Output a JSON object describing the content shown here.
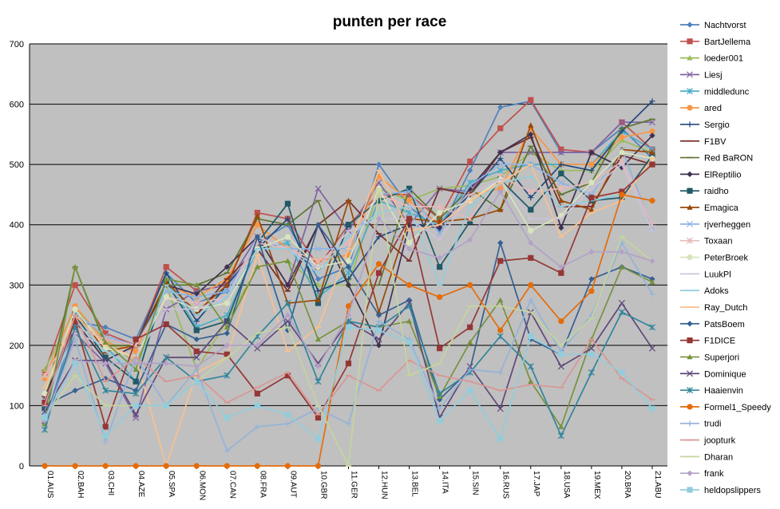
{
  "chart_data": {
    "type": "line",
    "title": "punten per race",
    "xlabel": "",
    "ylabel": "",
    "ylim": [
      0,
      700
    ],
    "yticks": [
      0,
      100,
      200,
      300,
      400,
      500,
      600,
      700
    ],
    "grid": true,
    "legend_position": "right",
    "plot_background": "#c0c0c0",
    "categories": [
      "01.AUS",
      "02.BAH",
      "03.CHI",
      "04.AZE",
      "05.SPA",
      "06.MON",
      "07.CAN",
      "08.FRA",
      "09.AUT",
      "10.GBR",
      "11.GER",
      "12.HUN",
      "13.BEL",
      "14.ITA",
      "15.SIN",
      "16.RUS",
      "17.JAP",
      "18.USA",
      "19.MEX",
      "20.BRA",
      "21.ABU"
    ],
    "series": [
      {
        "name": "Nachtvorst",
        "color": "#4f81bd",
        "marker": "diamond",
        "values": [
          70,
          240,
          230,
          210,
          320,
          270,
          290,
          370,
          400,
          310,
          330,
          500,
          430,
          390,
          490,
          595,
          605,
          520,
          520,
          560,
          510
        ]
      },
      {
        "name": "BartJellema",
        "color": "#c0504d",
        "marker": "square",
        "values": [
          155,
          300,
          220,
          200,
          330,
          290,
          300,
          420,
          410,
          330,
          400,
          450,
          450,
          410,
          505,
          560,
          607,
          525,
          520,
          570,
          525
        ]
      },
      {
        "name": "loeder001",
        "color": "#9bbb59",
        "marker": "triangle",
        "values": [
          160,
          260,
          210,
          170,
          300,
          160,
          240,
          330,
          340,
          300,
          300,
          460,
          440,
          460,
          465,
          480,
          520,
          490,
          490,
          540,
          520
        ]
      },
      {
        "name": "Liesj",
        "color": "#8064a2",
        "marker": "x",
        "values": [
          75,
          220,
          170,
          80,
          260,
          290,
          300,
          380,
          300,
          460,
          390,
          470,
          400,
          460,
          455,
          520,
          520,
          520,
          520,
          570,
          570
        ]
      },
      {
        "name": "middledunc",
        "color": "#4bacc6",
        "marker": "star",
        "values": [
          95,
          250,
          200,
          140,
          310,
          230,
          250,
          360,
          370,
          280,
          320,
          440,
          420,
          400,
          470,
          490,
          500,
          500,
          500,
          555,
          525
        ]
      },
      {
        "name": "ared",
        "color": "#f79646",
        "marker": "circle",
        "values": [
          145,
          265,
          205,
          190,
          300,
          280,
          310,
          400,
          360,
          340,
          350,
          480,
          440,
          400,
          450,
          460,
          560,
          500,
          500,
          545,
          555
        ]
      },
      {
        "name": "Sergio",
        "color": "#1f497d",
        "marker": "plus",
        "values": [
          105,
          250,
          200,
          200,
          320,
          240,
          300,
          360,
          410,
          290,
          310,
          380,
          400,
          400,
          450,
          510,
          445,
          500,
          490,
          555,
          605
        ]
      },
      {
        "name": "F1BV",
        "color": "#772c2a",
        "marker": "dash",
        "values": [
          115,
          230,
          210,
          200,
          300,
          250,
          310,
          360,
          290,
          400,
          440,
          385,
          340,
          460,
          450,
          520,
          545,
          430,
          430,
          515,
          500
        ]
      },
      {
        "name": "Red BaRON",
        "color": "#5f7530",
        "marker": "dash",
        "values": [
          100,
          330,
          200,
          200,
          300,
          300,
          320,
          410,
          400,
          440,
          300,
          300,
          460,
          410,
          460,
          425,
          530,
          450,
          470,
          560,
          575
        ]
      },
      {
        "name": "ElReptilio",
        "color": "#3f3151",
        "marker": "diamond",
        "values": [
          110,
          240,
          175,
          200,
          300,
          285,
          330,
          380,
          300,
          400,
          300,
          200,
          400,
          395,
          460,
          520,
          550,
          395,
          520,
          495,
          548
        ]
      },
      {
        "name": "raidho",
        "color": "#215968",
        "marker": "square",
        "values": [
          95,
          250,
          180,
          140,
          305,
          225,
          240,
          370,
          435,
          270,
          400,
          440,
          460,
          330,
          405,
          475,
          425,
          485,
          440,
          445,
          515
        ]
      },
      {
        "name": "Emagica",
        "color": "#984807",
        "marker": "triangle",
        "values": [
          120,
          260,
          190,
          200,
          305,
          255,
          300,
          415,
          270,
          275,
          440,
          255,
          410,
          405,
          410,
          425,
          565,
          440,
          425,
          525,
          520
        ]
      },
      {
        "name": "rjverheggen",
        "color": "#8eb4e3",
        "marker": "x",
        "values": [
          85,
          255,
          215,
          200,
          290,
          280,
          290,
          370,
          360,
          360,
          360,
          450,
          455,
          385,
          465,
          500,
          500,
          470,
          450,
          525,
          395
        ]
      },
      {
        "name": "Toxaan",
        "color": "#e6b9b8",
        "marker": "star",
        "values": [
          150,
          230,
          210,
          200,
          280,
          270,
          280,
          370,
          360,
          340,
          370,
          450,
          430,
          430,
          410,
          480,
          455,
          460,
          470,
          505,
          400
        ]
      },
      {
        "name": "PeterBroek",
        "color": "#d7e4bd",
        "marker": "circle",
        "values": [
          120,
          260,
          195,
          180,
          280,
          260,
          270,
          360,
          380,
          330,
          340,
          460,
          370,
          420,
          440,
          475,
          390,
          415,
          470,
          520,
          510
        ]
      },
      {
        "name": "LuukPl",
        "color": "#ccc1da",
        "marker": "dash",
        "values": [
          110,
          220,
          200,
          180,
          260,
          260,
          280,
          380,
          360,
          330,
          390,
          410,
          410,
          375,
          450,
          475,
          410,
          410,
          460,
          500,
          390
        ]
      },
      {
        "name": "Adoks",
        "color": "#93cddd",
        "marker": "dash",
        "values": [
          90,
          240,
          190,
          160,
          300,
          250,
          280,
          360,
          360,
          320,
          380,
          420,
          430,
          300,
          430,
          470,
          480,
          430,
          440,
          450,
          440
        ]
      },
      {
        "name": "Ray_Dutch",
        "color": "#fac090",
        "marker": "dash",
        "values": [
          130,
          250,
          200,
          180,
          0,
          155,
          180,
          350,
          190,
          230,
          360,
          490,
          390,
          400,
          440,
          470,
          500,
          380,
          420,
          440,
          510
        ]
      },
      {
        "name": "PatsBoem",
        "color": "#366092",
        "marker": "diamond",
        "values": [
          100,
          125,
          145,
          125,
          235,
          210,
          220,
          380,
          225,
          400,
          330,
          250,
          275,
          110,
          160,
          370,
          210,
          185,
          310,
          330,
          310
        ]
      },
      {
        "name": "F1DICE",
        "color": "#953735",
        "marker": "square",
        "values": [
          105,
          240,
          65,
          210,
          235,
          190,
          185,
          120,
          150,
          80,
          170,
          320,
          410,
          195,
          230,
          340,
          345,
          320,
          445,
          455,
          500
        ]
      },
      {
        "name": "Superjori",
        "color": "#76923c",
        "marker": "triangle",
        "values": [
          70,
          330,
          205,
          160,
          310,
          300,
          230,
          330,
          340,
          210,
          240,
          230,
          240,
          115,
          205,
          275,
          140,
          65,
          210,
          330,
          305
        ]
      },
      {
        "name": "Dominique",
        "color": "#5f497a",
        "marker": "x",
        "values": [
          90,
          175,
          175,
          85,
          180,
          180,
          240,
          195,
          240,
          170,
          240,
          210,
          270,
          80,
          165,
          95,
          255,
          165,
          195,
          270,
          195
        ]
      },
      {
        "name": "Haaienvin",
        "color": "#31859c",
        "marker": "star",
        "values": [
          60,
          230,
          125,
          120,
          180,
          140,
          150,
          215,
          270,
          140,
          240,
          230,
          265,
          120,
          155,
          215,
          165,
          50,
          155,
          255,
          230
        ]
      },
      {
        "name": "Formel1_Speedy",
        "color": "#e46c0a",
        "marker": "circle",
        "values": [
          0,
          0,
          0,
          0,
          0,
          0,
          0,
          0,
          0,
          0,
          265,
          335,
          300,
          280,
          300,
          225,
          300,
          240,
          290,
          450,
          440
        ]
      },
      {
        "name": "trudi",
        "color": "#95b3d7",
        "marker": "plus",
        "values": [
          75,
          210,
          40,
          180,
          100,
          160,
          25,
          65,
          70,
          95,
          70,
          240,
          210,
          95,
          160,
          155,
          275,
          190,
          250,
          370,
          285
        ]
      },
      {
        "name": "joopturk",
        "color": "#d99694",
        "marker": "dash",
        "values": [
          100,
          250,
          140,
          180,
          140,
          150,
          105,
          130,
          155,
          85,
          150,
          125,
          175,
          150,
          140,
          125,
          135,
          130,
          210,
          145,
          110
        ]
      },
      {
        "name": "Dharan",
        "color": "#c3d69b",
        "marker": "dash",
        "values": [
          80,
          150,
          100,
          100,
          100,
          140,
          180,
          220,
          230,
          100,
          0,
          460,
          150,
          170,
          265,
          265,
          255,
          200,
          245,
          380,
          340
        ]
      },
      {
        "name": "frank",
        "color": "#b3a2c7",
        "marker": "diamond",
        "values": [
          75,
          175,
          170,
          170,
          170,
          165,
          200,
          200,
          250,
          165,
          250,
          410,
          360,
          345,
          375,
          455,
          370,
          330,
          355,
          355,
          340
        ]
      },
      {
        "name": "heldopslippers",
        "color": "#92cddc",
        "marker": "square",
        "values": [
          80,
          170,
          50,
          100,
          100,
          140,
          80,
          100,
          85,
          45,
          230,
          225,
          205,
          75,
          125,
          45,
          215,
          185,
          185,
          155,
          95
        ]
      }
    ]
  }
}
